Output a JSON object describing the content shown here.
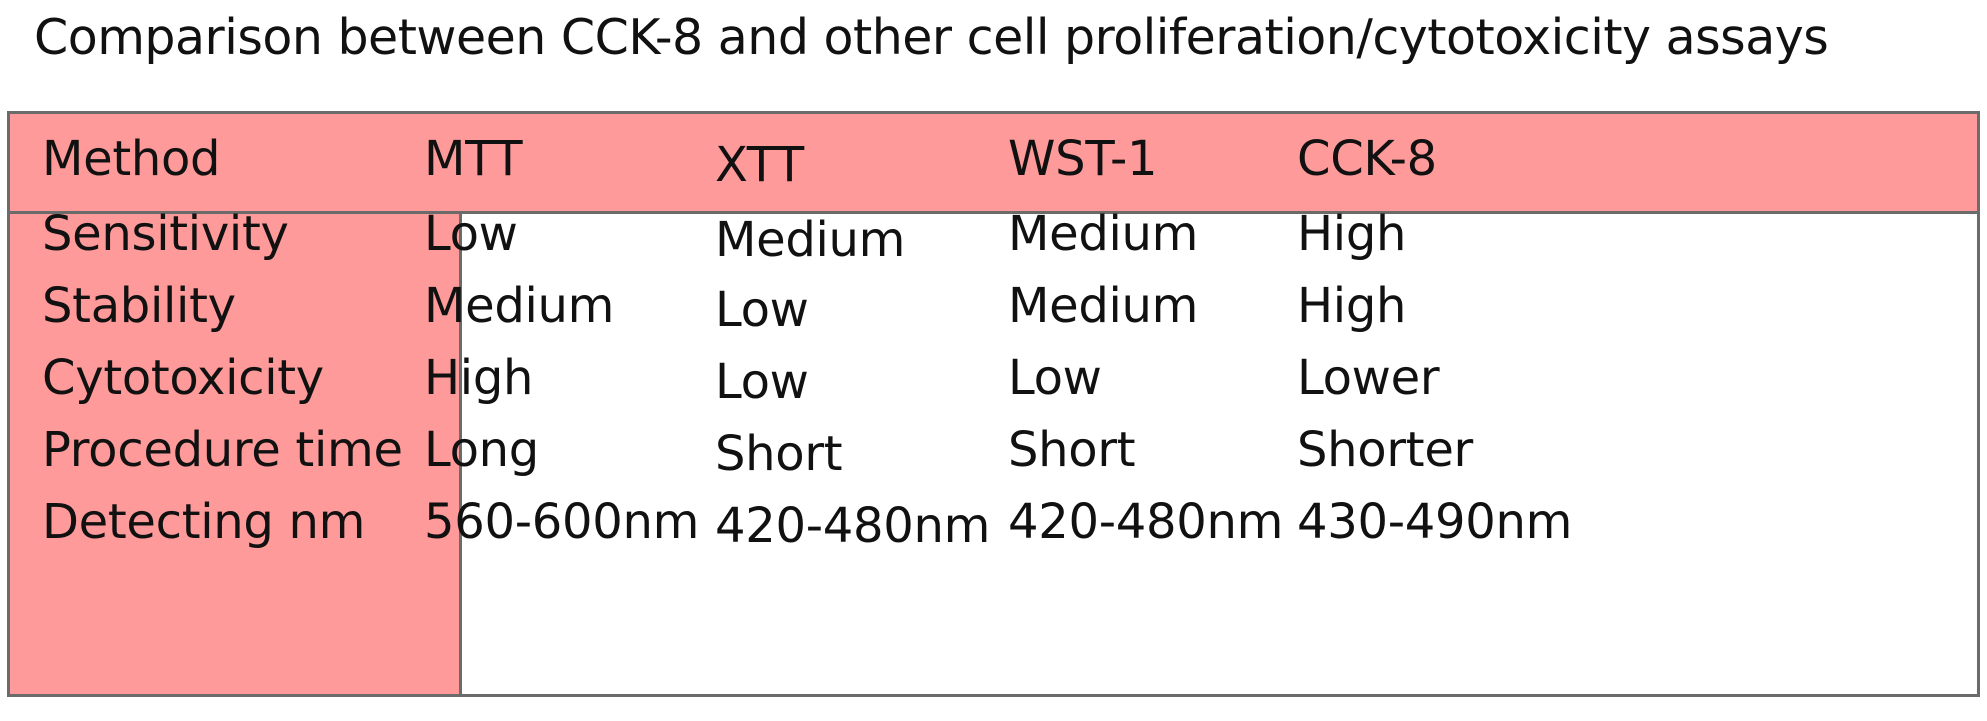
{
  "chart_data": {
    "type": "table",
    "title": "Comparison between CCK-8 and other cell proliferation/cytotoxicity assays",
    "columns": [
      "Method",
      "MTT",
      "XTT",
      "WST-1",
      "CCK-8"
    ],
    "rows": [
      [
        "Sensitivity",
        "Low",
        "Medium",
        "Medium",
        "High"
      ],
      [
        "Stability",
        "Medium",
        "Low",
        "Medium",
        "High"
      ],
      [
        "Cytotoxicity",
        "High",
        "Low",
        "Low",
        "Lower"
      ],
      [
        "Procedure time",
        "Long",
        "Short",
        "Short",
        "Shorter"
      ],
      [
        "Detecting nm",
        "560-600nm",
        "420-480nm",
        "420-480nm",
        "430-490nm"
      ]
    ]
  },
  "colors": {
    "header_fill": "#ff9a9a",
    "border": "#6b6b6b",
    "text": "#111111"
  }
}
